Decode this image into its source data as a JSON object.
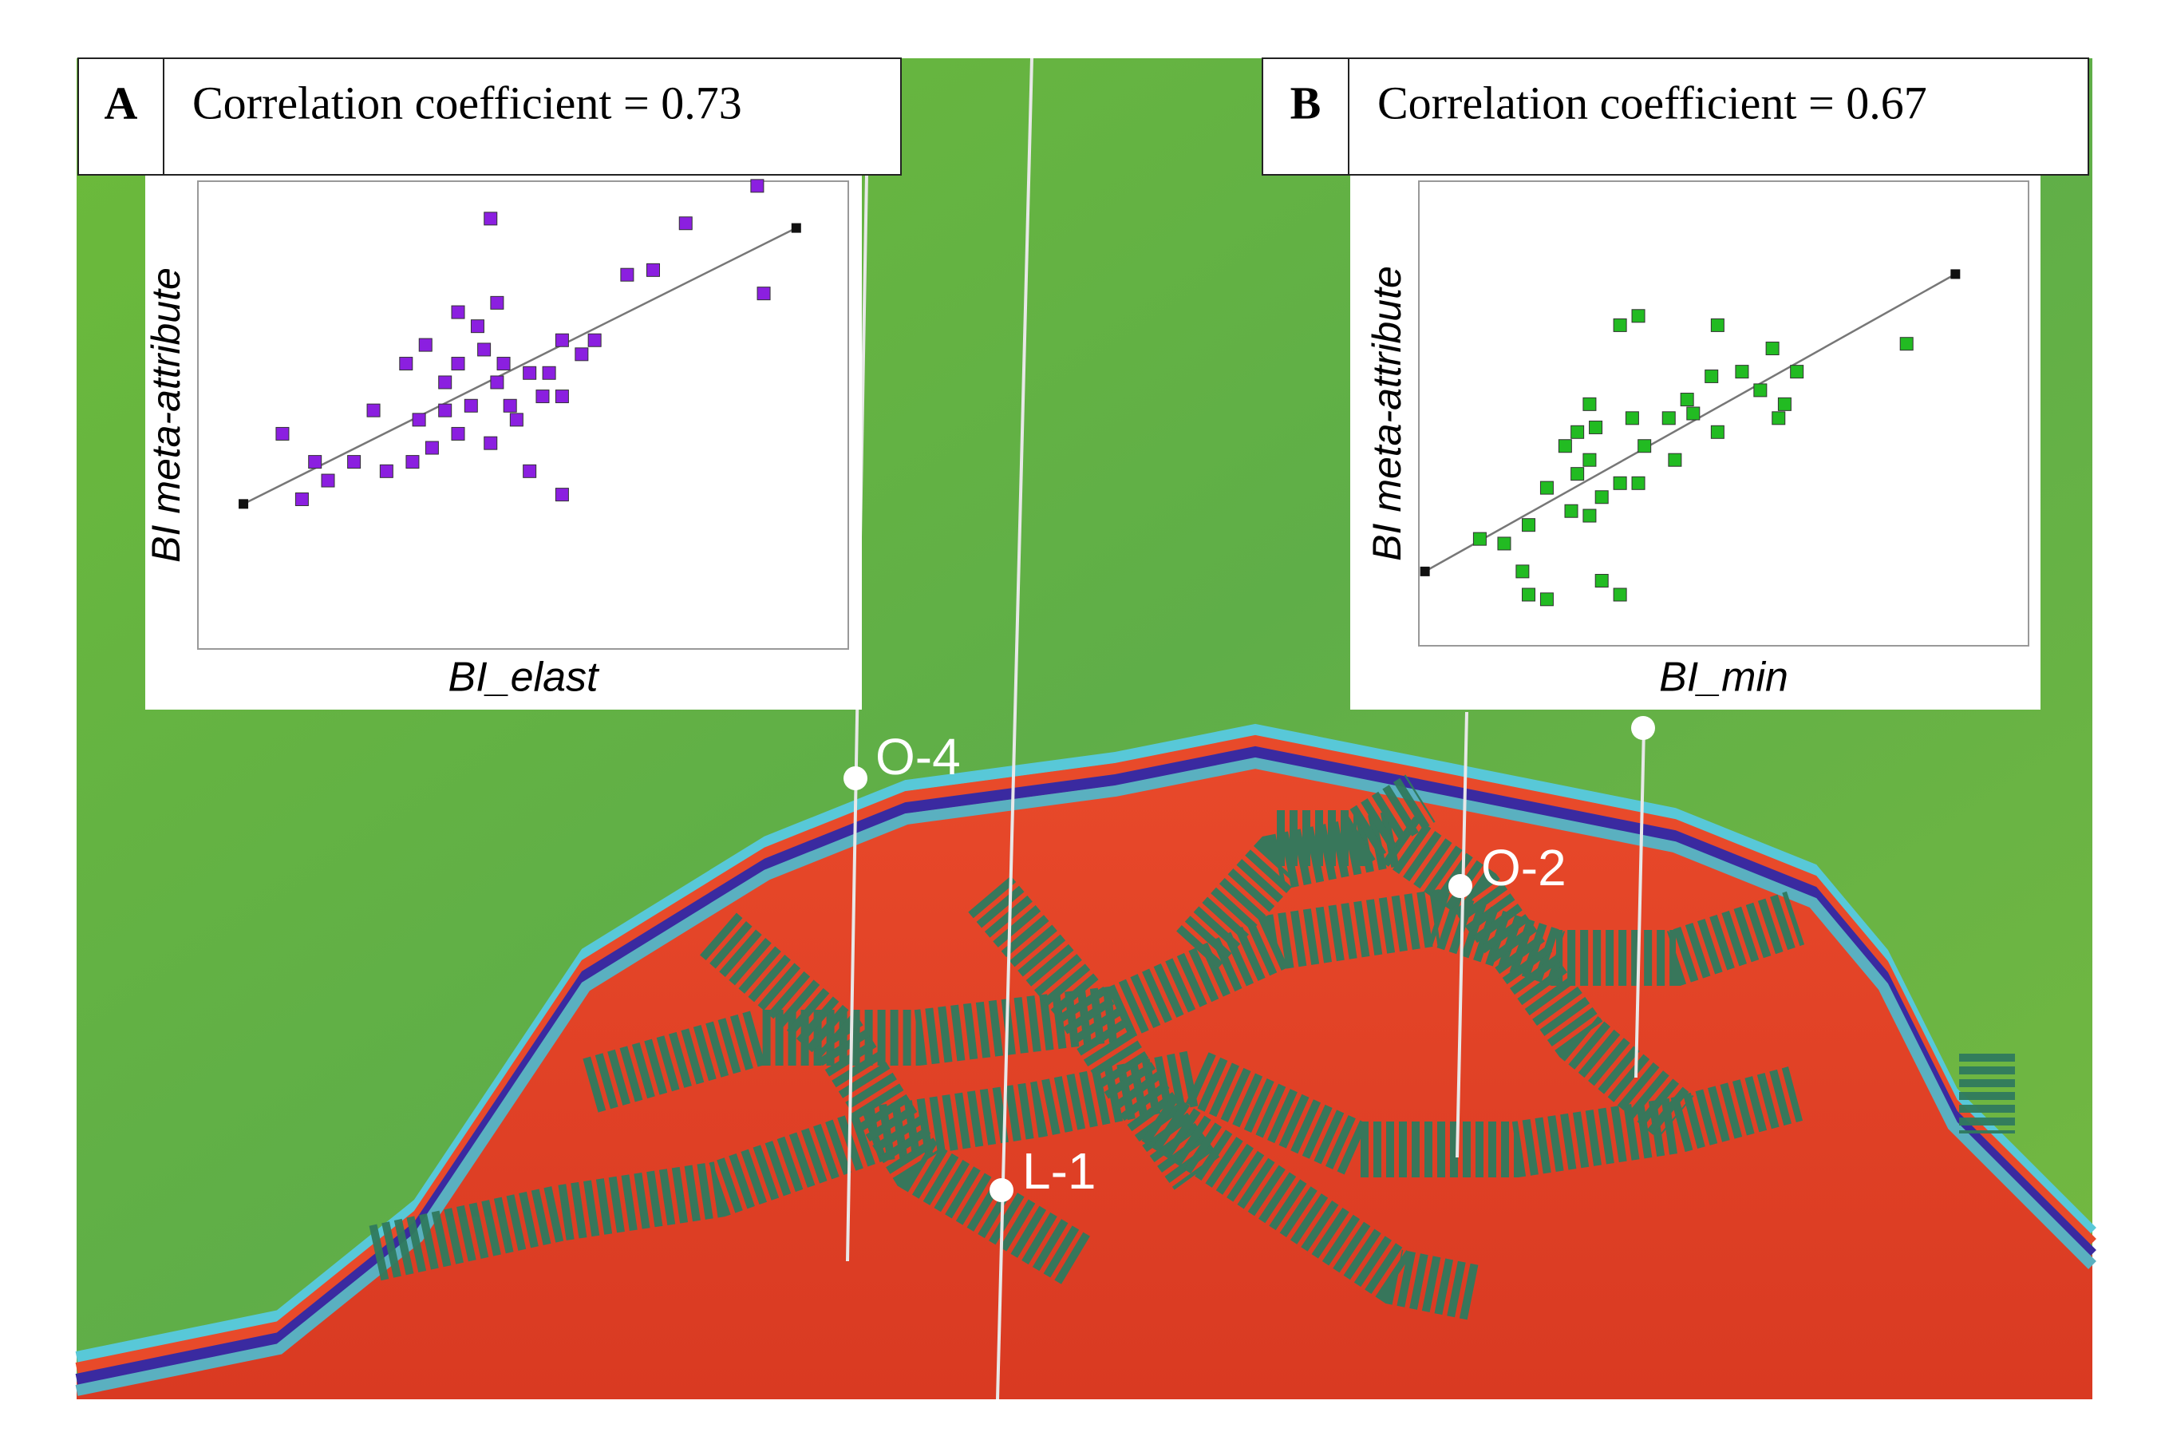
{
  "chart_data": [
    {
      "type": "scatter",
      "panel": "A",
      "title": "Correlation coefficient = 0.73",
      "x_label": "BI_elast",
      "y_label": "BI meta-attribute",
      "color": "#8b1fe0",
      "xlim": [
        0,
        100
      ],
      "ylim": [
        0,
        100
      ],
      "x": [
        45,
        86,
        75,
        87,
        70,
        66,
        46,
        40,
        43,
        35,
        32,
        38,
        47,
        51,
        56,
        61,
        59,
        53,
        48,
        42,
        38,
        34,
        36,
        33,
        40,
        45,
        49,
        56,
        51,
        56,
        29,
        24,
        18,
        20,
        16,
        13,
        27,
        44,
        46,
        40,
        54
      ],
      "y": [
        92,
        99,
        91,
        76,
        81,
        80,
        74,
        72,
        69,
        65,
        61,
        57,
        61,
        59,
        66,
        66,
        63,
        54,
        52,
        52,
        51,
        49,
        43,
        40,
        46,
        44,
        49,
        54,
        38,
        33,
        38,
        40,
        40,
        36,
        32,
        46,
        51,
        64,
        57,
        61,
        59
      ],
      "trend": {
        "x": [
          7,
          92
        ],
        "y": [
          31,
          90
        ]
      }
    },
    {
      "type": "scatter",
      "panel": "B",
      "title": "Correlation coefficient = 0.67",
      "x_label": "BI_min",
      "y_label": "BI meta-attribute",
      "color": "#22bb22",
      "xlim": [
        0,
        100
      ],
      "ylim": [
        0,
        100
      ],
      "x": [
        36,
        33,
        49,
        80,
        58,
        53,
        48,
        60,
        44,
        41,
        35,
        29,
        26,
        37,
        28,
        26,
        33,
        21,
        25,
        28,
        18,
        14,
        10,
        17,
        21,
        18,
        30,
        33,
        42,
        49,
        45,
        56,
        62,
        59,
        28,
        24,
        30,
        36
      ],
      "y": [
        71,
        69,
        69,
        65,
        64,
        59,
        58,
        52,
        53,
        49,
        49,
        47,
        46,
        43,
        40,
        37,
        35,
        34,
        29,
        28,
        26,
        22,
        23,
        16,
        10,
        11,
        14,
        11,
        40,
        46,
        50,
        55,
        59,
        49,
        52,
        43,
        32,
        35
      ],
      "trend": {
        "x": [
          1,
          88
        ],
        "y": [
          16,
          80
        ]
      }
    }
  ],
  "wells": [
    "O-4",
    "O-2",
    "L-1"
  ]
}
